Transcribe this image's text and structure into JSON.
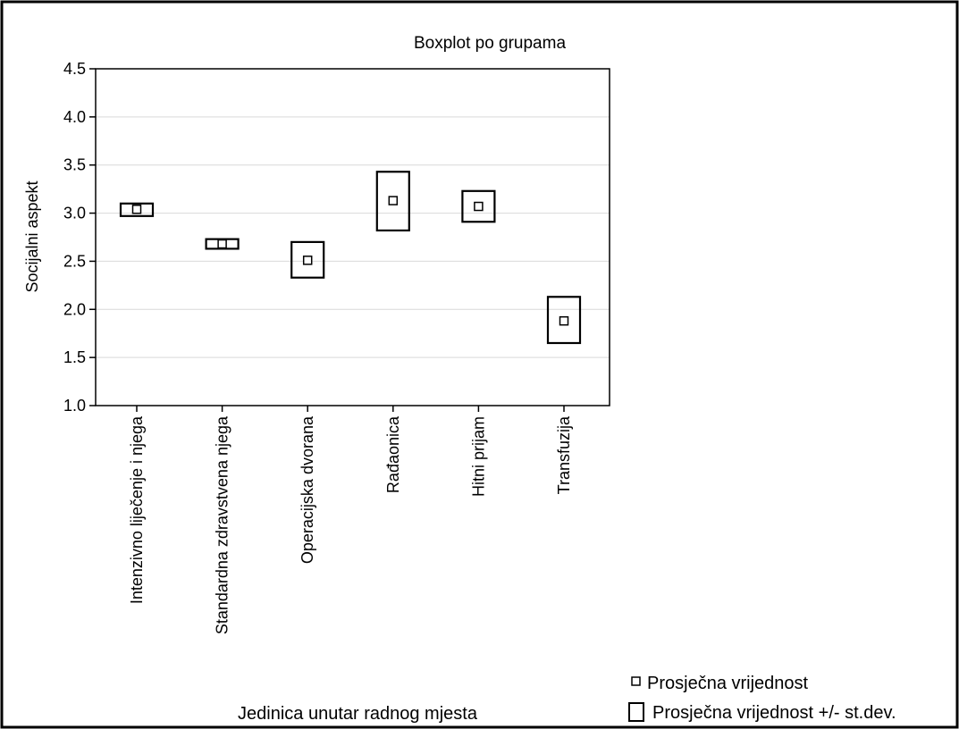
{
  "chart_data": {
    "type": "boxplot",
    "title": "Boxplot po grupama",
    "xlabel": "Jedinica unutar radnog mjesta",
    "ylabel": "Socijalni aspekt",
    "ylim": [
      1.0,
      4.5
    ],
    "yticks": [
      "1.0",
      "1.5",
      "2.0",
      "2.5",
      "3.0",
      "3.5",
      "4.0",
      "4.5"
    ],
    "yticks_values": [
      1.0,
      1.5,
      2.0,
      2.5,
      3.0,
      3.5,
      4.0,
      4.5
    ],
    "grid": true,
    "categories": [
      "Intenzivno liječenje i njega",
      "Standardna zdravstvena njega",
      "Operacijska dvorana",
      "Rađaonica",
      "Hitni prijam",
      "Transfuzija"
    ],
    "mean": [
      3.04,
      2.68,
      2.51,
      3.13,
      3.07,
      1.88
    ],
    "lower": [
      2.97,
      2.63,
      2.33,
      2.82,
      2.91,
      1.65
    ],
    "upper": [
      3.1,
      2.73,
      2.7,
      3.43,
      3.23,
      2.13
    ],
    "legend": {
      "placement": "bottom-right",
      "entries": [
        "Prosječna vrijednost",
        "Prosječna vrijednost +/- st.dev."
      ]
    }
  }
}
